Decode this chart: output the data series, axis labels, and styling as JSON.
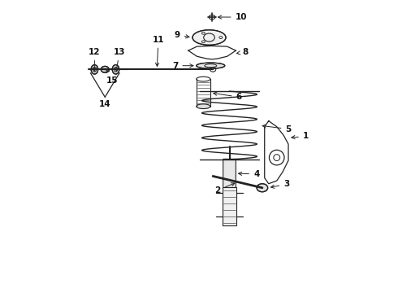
{
  "bg_color": "#ffffff",
  "line_color": "#222222",
  "text_color": "#111111",
  "figsize": [
    4.9,
    3.6
  ],
  "dpi": 100
}
